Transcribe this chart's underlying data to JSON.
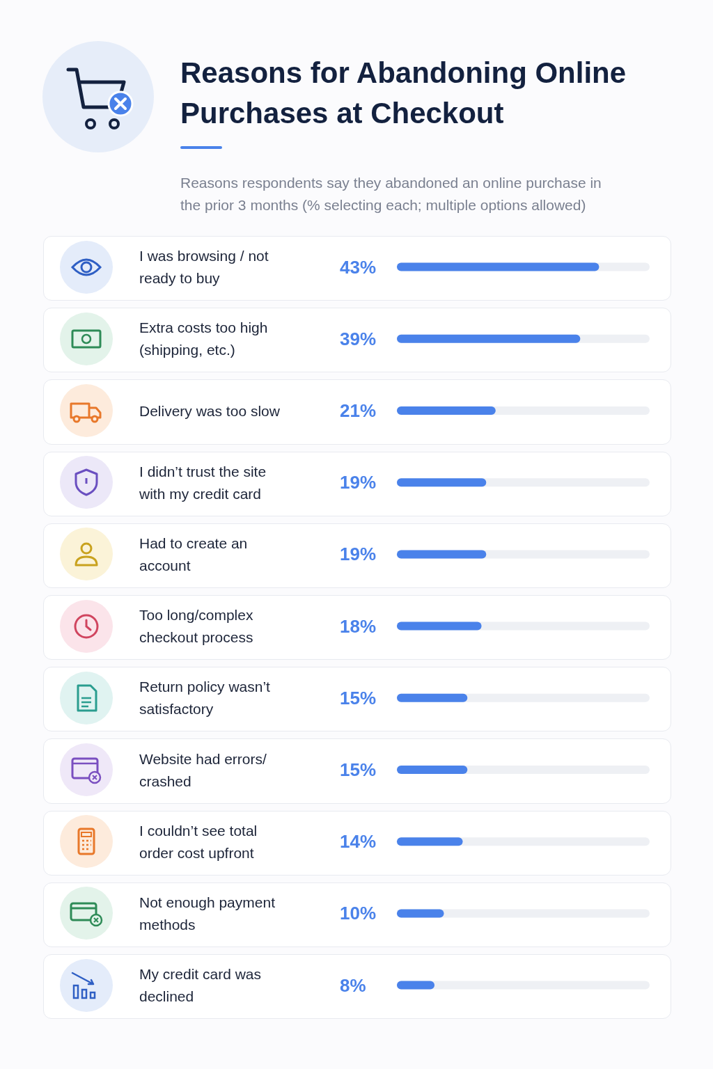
{
  "chart_data": {
    "type": "bar",
    "orientation": "horizontal",
    "title": "Reasons for Abandoning Online Purchases at Checkout",
    "subtitle": "Reasons respondents say they abandoned an online purchase in the prior 3 months (% selecting each; multiple options allowed)",
    "categories": [
      "I was browsing / not ready to buy",
      "Extra costs too high (shipping, etc.)",
      "Delivery was too slow",
      "I didn’t trust the site with my credit card",
      "Had to create an account",
      "Too long/complex checkout process",
      "Return policy wasn’t satisfactory",
      "Website had errors/crashed",
      "I couldn’t see total order cost upfront",
      "Not enough payment methods",
      "My credit card was declined"
    ],
    "values": [
      43,
      39,
      21,
      19,
      19,
      18,
      15,
      15,
      14,
      10,
      8
    ],
    "value_labels": [
      "43%",
      "39%",
      "21%",
      "19%",
      "19%",
      "18%",
      "15%",
      "15%",
      "14%",
      "10%",
      "8%"
    ],
    "color": "#4a82ea",
    "tick_labels": "y"
  }
}
